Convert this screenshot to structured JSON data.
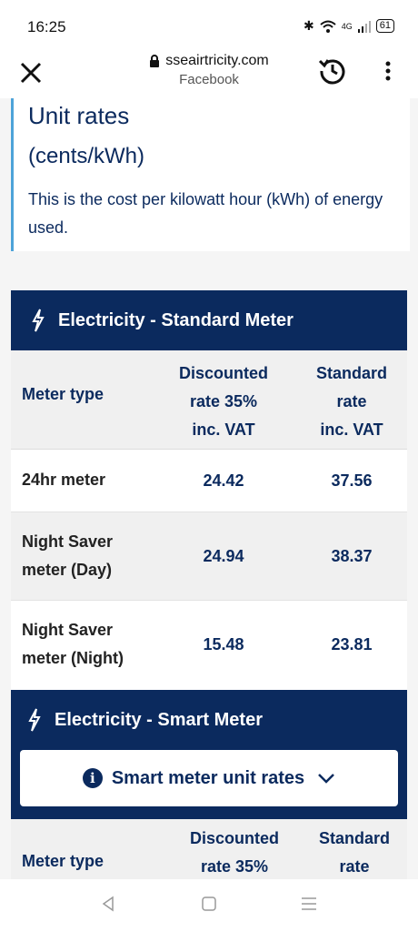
{
  "status": {
    "time": "16:25",
    "network": "4G",
    "battery": "61"
  },
  "browser": {
    "url": "sseairtricity.com",
    "subtitle": "Facebook"
  },
  "intro": {
    "title": "Unit rates",
    "unit": "(cents/kWh)",
    "description": "This is the cost per kilowatt hour (kWh) of energy used."
  },
  "standard": {
    "title": "Electricity - Standard Meter",
    "headers": [
      "Meter type",
      "Discounted rate 35% inc. VAT",
      "Standard rate inc. VAT"
    ],
    "header_lines": [
      [
        "Discounted",
        "rate 35%",
        "inc. VAT"
      ],
      [
        "Standard",
        "rate",
        "inc. VAT"
      ]
    ],
    "rows": [
      {
        "label_lines": [
          "24hr meter"
        ],
        "discounted": "24.42",
        "standard": "37.56"
      },
      {
        "label_lines": [
          "Night Saver",
          "meter (Day)"
        ],
        "discounted": "24.94",
        "standard": "38.37"
      },
      {
        "label_lines": [
          "Night Saver",
          "meter (Night)"
        ],
        "discounted": "15.48",
        "standard": "23.81"
      }
    ]
  },
  "smart": {
    "title": "Electricity - Smart Meter",
    "button_label": "Smart meter unit rates",
    "headers": [
      "Meter type",
      "Discounted rate 35%",
      "Standard rate"
    ],
    "header_lines": [
      [
        "Discounted",
        "rate 35%"
      ],
      [
        "Standard",
        "rate"
      ]
    ]
  },
  "colors": {
    "navy": "#0b2a5e",
    "accent_border": "#4da3d9"
  }
}
